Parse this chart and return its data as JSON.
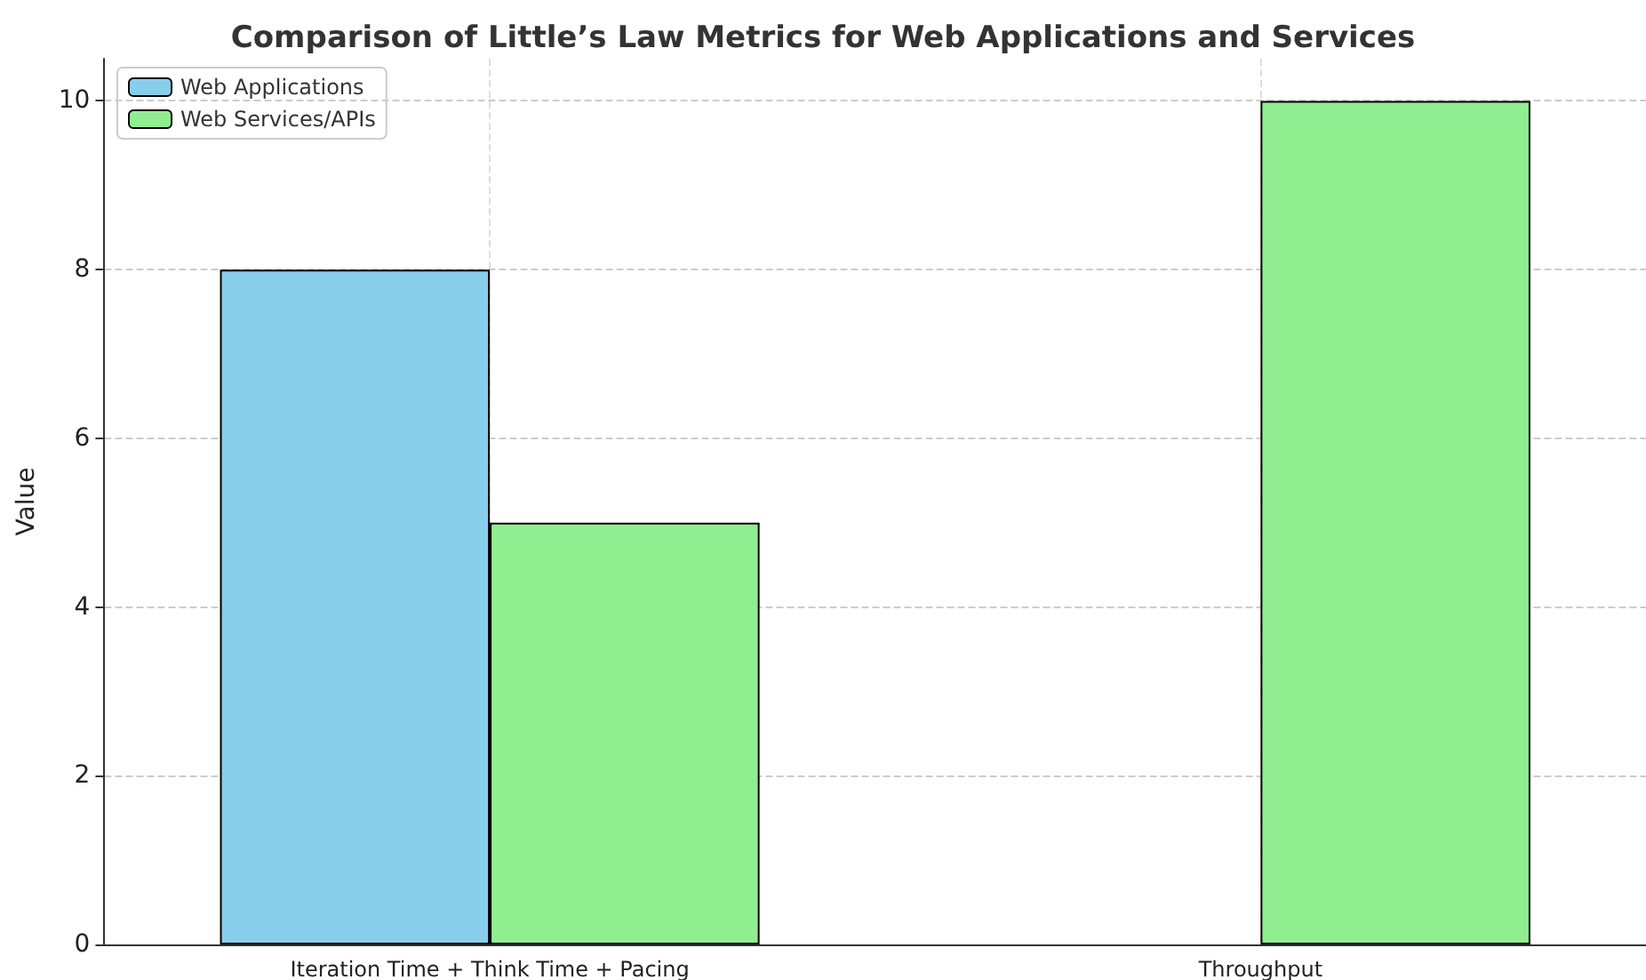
{
  "chart_data": {
    "type": "bar",
    "title": "Comparison of Little’s Law Metrics for Web Applications and Services",
    "ylabel": "Value",
    "categories": [
      "Iteration Time + Think Time + Pacing",
      "Throughput"
    ],
    "series": [
      {
        "name": "Web Applications",
        "color": "#87ceeb",
        "values": [
          8,
          null
        ]
      },
      {
        "name": "Web Services/APIs",
        "color": "#90ee90",
        "values": [
          5,
          10
        ]
      }
    ],
    "ylim": [
      0,
      10.5
    ],
    "yticks": [
      0,
      2,
      4,
      6,
      8,
      10
    ],
    "grid": true,
    "legend": "top left"
  }
}
